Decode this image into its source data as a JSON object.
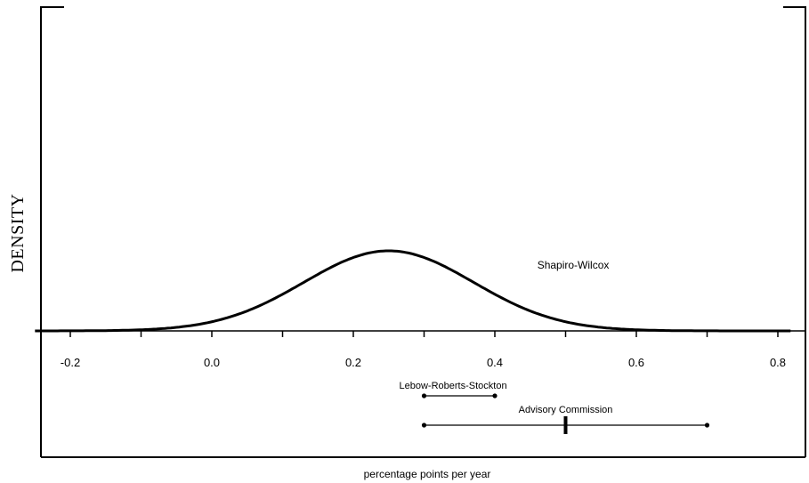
{
  "chart_data": {
    "type": "line",
    "xlabel": "percentage points per year",
    "ylabel": "DENSITY",
    "xlim": [
      -0.25,
      0.8
    ],
    "x_ticks": [
      -0.2,
      0.0,
      0.2,
      0.4,
      0.6,
      0.8
    ],
    "x_tick_labels": [
      "-0.2",
      "0.0",
      "0.2",
      "0.4",
      "0.6",
      "0.8"
    ],
    "x_minor_step": 0.1,
    "grid": false,
    "series": [
      {
        "name": "Shapiro-Wilcox",
        "distribution": "normal",
        "mean": 0.25,
        "sd": 0.12
      }
    ],
    "intervals": [
      {
        "name": "Lebow-Roberts-Stockton",
        "low": 0.3,
        "high": 0.4
      },
      {
        "name": "Advisory Commission",
        "low": 0.3,
        "high": 0.7,
        "point": 0.5
      }
    ]
  }
}
